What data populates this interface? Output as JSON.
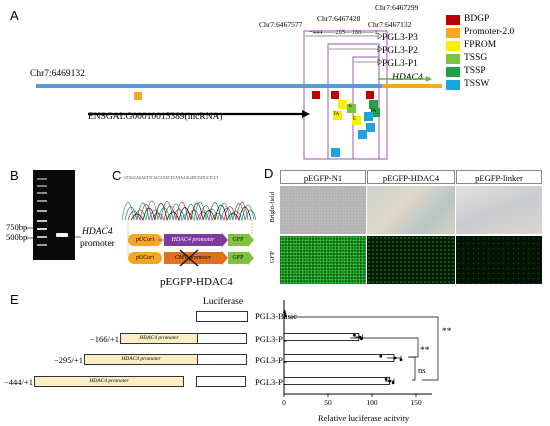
{
  "panels": {
    "a": "A",
    "b": "B",
    "c": "C",
    "d": "D",
    "e": "E"
  },
  "panelA": {
    "coord_left": "Chr7:6469132",
    "coord_top": "Chr7:6467299",
    "coord_mid": "Chr7:6467428",
    "coord_577": "Chr7:6467577",
    "coord_132": "Chr7:6467132",
    "dist": "−444——295—166——1",
    "p3": "PGL3-P3",
    "p2": "PGL3-P2",
    "p1": "PGL3-P1",
    "gene": "HDAC4",
    "lnc": "ENSGALG00010015389(lncRNA)",
    "legend": [
      {
        "label": "BDGP",
        "color": "#c00000"
      },
      {
        "label": "Promoter-2.0",
        "color": "#f5a623"
      },
      {
        "label": "FPROM",
        "color": "#f7f000"
      },
      {
        "label": "TSSG",
        "color": "#7fc241"
      },
      {
        "label": "TSSP",
        "color": "#22a046"
      },
      {
        "label": "TSSW",
        "color": "#1fa3e0"
      }
    ],
    "tags": {
      "ta": "TA",
      "e": "E"
    },
    "colors": {
      "track": "#5b9bd5",
      "hdac4": "#f5a623",
      "arrow": "#5fb842",
      "box": "#9b59b6"
    }
  },
  "panelB": {
    "bp750": "750bp",
    "bp500": "500bp",
    "gene": "HDAC4",
    "promoter": "promoter"
  },
  "panelC": {
    "seq": "GTAGCAGAGTTCACCGTACTCAAAAAGATGTATGCTCCT",
    "ori1": "pUCori",
    "prom": "HDAC4 promoter",
    "gfp": "GFP",
    "ori2": "pUCori",
    "cmv": "CMV promoter",
    "caption": "pEGFP-HDAC4"
  },
  "panelD": {
    "cols": [
      "pEGFP-N1",
      "pEGFP-HDAC4",
      "pEGFP-linker"
    ],
    "rows": [
      "Bright-field",
      "GFP"
    ]
  },
  "panelE": {
    "luciferase": "Luciferase",
    "constructs": [
      {
        "name": "PGL3-Basic",
        "range": "",
        "prom": ""
      },
      {
        "name": "PGL3-P1",
        "range": "−166/+1",
        "prom": "HDAC4 promoter"
      },
      {
        "name": "PGL3-P2",
        "range": "−295/+1",
        "prom": "HDAC4 promoter"
      },
      {
        "name": "PGL3-P3",
        "range": "−444/+1",
        "prom": "HDAC4 promoter"
      }
    ],
    "sig": {
      "s1": "**",
      "s2": "**",
      "ns": "ns"
    },
    "xlabel": "Relative luciferase acitvity",
    "ticks": [
      "0",
      "50",
      "100",
      "150"
    ]
  },
  "chart_data": {
    "type": "bar",
    "categories": [
      "PGL3-Basic",
      "PGL3-P1",
      "PGL3-P2",
      "PGL3-P3"
    ],
    "values": [
      1,
      85,
      125,
      120
    ],
    "errors": [
      0.5,
      4,
      8,
      5
    ],
    "points": [
      [
        0.5,
        1,
        1.5
      ],
      [
        80,
        86,
        88
      ],
      [
        110,
        126,
        133
      ],
      [
        116,
        120,
        124
      ]
    ],
    "orientation": "horizontal",
    "xlabel": "Relative luciferase acitvity",
    "xlim": [
      0,
      150
    ]
  }
}
